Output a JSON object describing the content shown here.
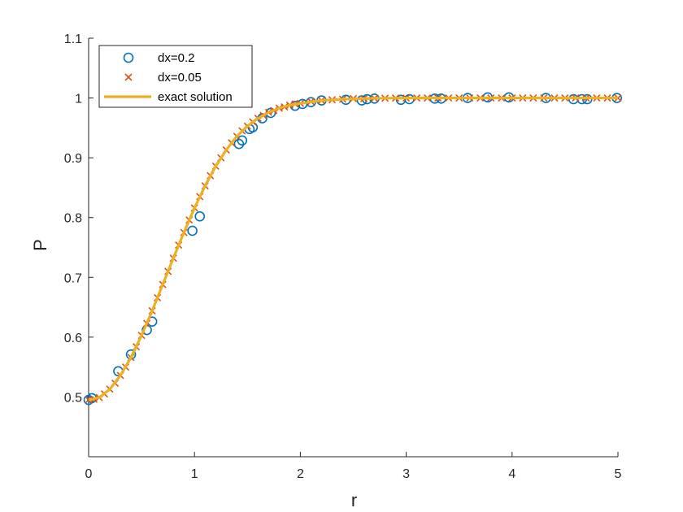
{
  "chart_data": {
    "type": "scatter",
    "title": "",
    "xlabel": "r",
    "ylabel": "P",
    "xlim": [
      0,
      5
    ],
    "ylim": [
      0.4,
      1.1
    ],
    "x_ticks": [
      "0",
      "1",
      "2",
      "3",
      "4",
      "5"
    ],
    "y_ticks": [
      "0.5",
      "0.6",
      "0.7",
      "0.8",
      "0.9",
      "1",
      "1.1"
    ],
    "grid": false,
    "legend_position": "top-left",
    "series": [
      {
        "name": "dx=0.2",
        "marker": "circle",
        "color": "#0072BD",
        "x": [
          0.0,
          0.03,
          0.28,
          0.4,
          0.55,
          0.6,
          0.98,
          1.05,
          1.42,
          1.45,
          1.52,
          1.55,
          1.64,
          1.72,
          1.95,
          2.02,
          2.1,
          2.2,
          2.43,
          2.58,
          2.63,
          2.7,
          2.95,
          3.03,
          3.27,
          3.33,
          3.58,
          3.77,
          3.97,
          4.32,
          4.58,
          4.66,
          4.71,
          4.99
        ],
        "y": [
          0.495,
          0.498,
          0.543,
          0.571,
          0.612,
          0.626,
          0.778,
          0.802,
          0.923,
          0.929,
          0.948,
          0.951,
          0.966,
          0.975,
          0.987,
          0.99,
          0.993,
          0.996,
          0.997,
          0.996,
          0.998,
          0.999,
          0.997,
          0.998,
          0.999,
          0.999,
          1.0,
          1.001,
          1.001,
          1.0,
          0.998,
          0.998,
          0.998,
          1.0
        ]
      },
      {
        "name": "dx=0.05",
        "marker": "x",
        "color": "#D95319",
        "x": [
          0.0,
          0.05,
          0.1,
          0.15,
          0.2,
          0.25,
          0.3,
          0.35,
          0.4,
          0.45,
          0.5,
          0.55,
          0.6,
          0.65,
          0.7,
          0.75,
          0.8,
          0.85,
          0.9,
          0.95,
          1.0,
          1.05,
          1.1,
          1.15,
          1.2,
          1.25,
          1.3,
          1.35,
          1.4,
          1.45,
          1.5,
          1.55,
          1.6,
          1.65,
          1.7,
          1.75,
          1.8,
          1.85,
          1.9,
          1.95,
          2.0,
          2.1,
          2.2,
          2.3,
          2.4,
          2.5,
          2.6,
          2.7,
          2.8,
          2.9,
          3.0,
          3.1,
          3.2,
          3.3,
          3.4,
          3.5,
          3.6,
          3.7,
          3.8,
          3.9,
          4.0,
          4.1,
          4.2,
          4.3,
          4.4,
          4.5,
          4.6,
          4.7,
          4.8,
          4.9,
          5.0
        ],
        "y": [
          0.495,
          0.496,
          0.499,
          0.505,
          0.513,
          0.523,
          0.536,
          0.55,
          0.566,
          0.584,
          0.603,
          0.623,
          0.644,
          0.666,
          0.688,
          0.71,
          0.732,
          0.754,
          0.775,
          0.796,
          0.816,
          0.835,
          0.853,
          0.87,
          0.886,
          0.9,
          0.913,
          0.925,
          0.936,
          0.945,
          0.953,
          0.96,
          0.966,
          0.971,
          0.976,
          0.979,
          0.983,
          0.985,
          0.988,
          0.99,
          0.991,
          0.994,
          0.996,
          0.997,
          0.998,
          0.999,
          0.999,
          0.9995,
          0.9997,
          0.9998,
          0.9999,
          1.0,
          1.0,
          1.0,
          1.0,
          1.0,
          1.0,
          1.0,
          1.0,
          1.0,
          1.0,
          1.0,
          1.0,
          1.0,
          1.0,
          1.0,
          1.0,
          1.0,
          1.0,
          1.0,
          1.0
        ]
      },
      {
        "name": "exact solution",
        "marker": "line",
        "color": "#EDB120",
        "x": [
          0.0,
          0.1,
          0.2,
          0.3,
          0.4,
          0.5,
          0.6,
          0.7,
          0.8,
          0.9,
          1.0,
          1.1,
          1.2,
          1.3,
          1.4,
          1.5,
          1.6,
          1.7,
          1.8,
          1.9,
          2.0,
          2.2,
          2.4,
          2.6,
          2.8,
          3.0,
          3.5,
          4.0,
          4.5,
          5.0
        ],
        "y": [
          0.495,
          0.499,
          0.513,
          0.536,
          0.566,
          0.603,
          0.644,
          0.688,
          0.732,
          0.775,
          0.816,
          0.853,
          0.886,
          0.913,
          0.936,
          0.953,
          0.966,
          0.976,
          0.983,
          0.988,
          0.991,
          0.996,
          0.998,
          0.999,
          0.9997,
          0.9999,
          1.0,
          1.0,
          1.0,
          1.0
        ]
      }
    ]
  }
}
